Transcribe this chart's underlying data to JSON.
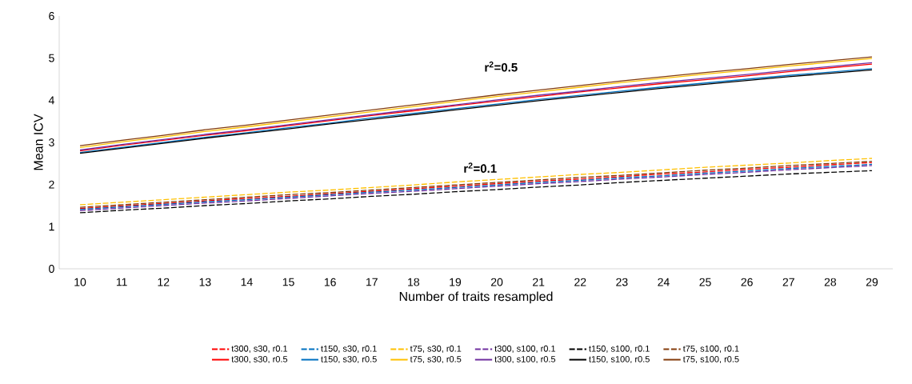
{
  "chart_data": {
    "type": "line",
    "xlabel": "Number of traits resampled",
    "ylabel": "Mean ICV",
    "categories": [
      "10",
      "11",
      "12",
      "13",
      "14",
      "15",
      "16",
      "17",
      "18",
      "19",
      "20",
      "21",
      "22",
      "23",
      "24",
      "25",
      "26",
      "27",
      "28",
      "29"
    ],
    "ylim": [
      0,
      6
    ],
    "yticks": [
      0,
      1,
      2,
      3,
      4,
      5,
      6
    ],
    "grid": false,
    "legend": "bottom",
    "marker": "none",
    "series": [
      {
        "name": "t300, s30, r0.1",
        "color": "#ff0000",
        "line_style": "dashed",
        "values": [
          1.43,
          1.49,
          1.55,
          1.61,
          1.67,
          1.72,
          1.78,
          1.84,
          1.9,
          1.96,
          2.02,
          2.08,
          2.13,
          2.19,
          2.25,
          2.3,
          2.36,
          2.41,
          2.47,
          2.52
        ]
      },
      {
        "name": "t150, s30, r0.1",
        "color": "#0070c0",
        "line_style": "dashed",
        "values": [
          1.41,
          1.47,
          1.53,
          1.59,
          1.64,
          1.7,
          1.76,
          1.82,
          1.87,
          1.93,
          1.99,
          2.05,
          2.1,
          2.16,
          2.21,
          2.27,
          2.32,
          2.38,
          2.43,
          2.48
        ]
      },
      {
        "name": "t75, s30, r0.1",
        "color": "#ffc000",
        "line_style": "dashed",
        "values": [
          1.52,
          1.58,
          1.64,
          1.7,
          1.76,
          1.82,
          1.87,
          1.93,
          1.99,
          2.06,
          2.12,
          2.18,
          2.24,
          2.29,
          2.35,
          2.41,
          2.46,
          2.51,
          2.57,
          2.62
        ]
      },
      {
        "name": "t300, s100, r0.1",
        "color": "#7030a0",
        "line_style": "dashed",
        "values": [
          1.38,
          1.44,
          1.5,
          1.56,
          1.61,
          1.67,
          1.73,
          1.79,
          1.84,
          1.9,
          1.96,
          2.02,
          2.07,
          2.13,
          2.18,
          2.24,
          2.29,
          2.35,
          2.4,
          2.45
        ]
      },
      {
        "name": "t150, s100, r0.1",
        "color": "#000000",
        "line_style": "dashed",
        "values": [
          1.33,
          1.39,
          1.44,
          1.5,
          1.55,
          1.61,
          1.66,
          1.72,
          1.77,
          1.83,
          1.88,
          1.94,
          1.99,
          2.05,
          2.1,
          2.15,
          2.2,
          2.25,
          2.29,
          2.33
        ]
      },
      {
        "name": "t75, s100, r0.1",
        "color": "#843c0c",
        "line_style": "dashed",
        "values": [
          1.46,
          1.52,
          1.58,
          1.64,
          1.7,
          1.76,
          1.81,
          1.87,
          1.93,
          1.99,
          2.05,
          2.11,
          2.17,
          2.22,
          2.28,
          2.34,
          2.39,
          2.45,
          2.5,
          2.55
        ]
      },
      {
        "name": "t300, s30, r0.5",
        "color": "#ff0000",
        "line_style": "solid",
        "values": [
          2.8,
          2.93,
          3.05,
          3.17,
          3.28,
          3.4,
          3.52,
          3.64,
          3.75,
          3.87,
          3.98,
          4.09,
          4.2,
          4.3,
          4.4,
          4.49,
          4.58,
          4.68,
          4.77,
          4.86
        ]
      },
      {
        "name": "t150, s30, r0.5",
        "color": "#0070c0",
        "line_style": "solid",
        "values": [
          2.76,
          2.88,
          3.0,
          3.12,
          3.23,
          3.35,
          3.46,
          3.58,
          3.69,
          3.8,
          3.91,
          4.02,
          4.12,
          4.22,
          4.32,
          4.41,
          4.5,
          4.59,
          4.67,
          4.75
        ]
      },
      {
        "name": "t75, s30, r0.5",
        "color": "#ffc000",
        "line_style": "solid",
        "values": [
          2.88,
          3.01,
          3.13,
          3.26,
          3.37,
          3.49,
          3.61,
          3.73,
          3.85,
          3.97,
          4.09,
          4.2,
          4.31,
          4.42,
          4.52,
          4.62,
          4.71,
          4.81,
          4.9,
          4.99
        ]
      },
      {
        "name": "t300, s100, r0.5",
        "color": "#7030a0",
        "line_style": "solid",
        "values": [
          2.82,
          2.95,
          3.07,
          3.19,
          3.3,
          3.42,
          3.54,
          3.66,
          3.78,
          3.89,
          4.01,
          4.12,
          4.22,
          4.33,
          4.43,
          4.52,
          4.61,
          4.71,
          4.8,
          4.89
        ]
      },
      {
        "name": "t150, s100, r0.5",
        "color": "#000000",
        "line_style": "solid",
        "values": [
          2.74,
          2.86,
          2.98,
          3.1,
          3.21,
          3.32,
          3.44,
          3.55,
          3.66,
          3.77,
          3.88,
          3.99,
          4.09,
          4.19,
          4.29,
          4.38,
          4.47,
          4.56,
          4.64,
          4.72
        ]
      },
      {
        "name": "t75, s100, r0.5",
        "color": "#843c0c",
        "line_style": "solid",
        "values": [
          2.92,
          3.05,
          3.17,
          3.3,
          3.41,
          3.53,
          3.65,
          3.77,
          3.89,
          4.01,
          4.13,
          4.24,
          4.35,
          4.46,
          4.56,
          4.66,
          4.75,
          4.85,
          4.94,
          5.03
        ]
      }
    ],
    "annotations": [
      "r$^{2}$=0.5",
      "r$^{2}$=0.1"
    ]
  }
}
